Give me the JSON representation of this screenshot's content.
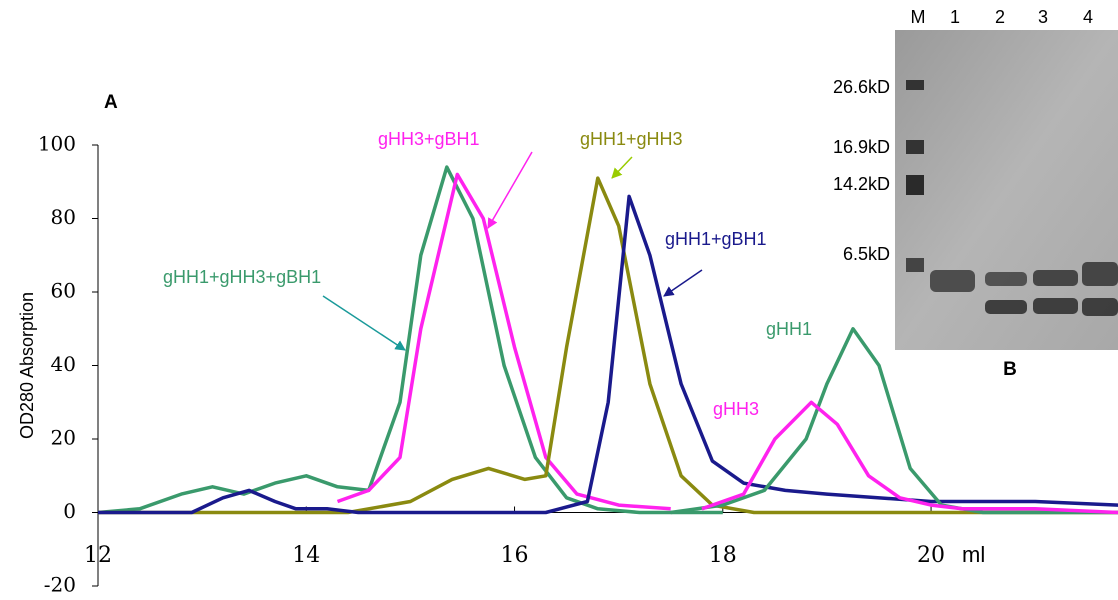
{
  "chart_data": {
    "type": "line",
    "title": "A",
    "y_label": "OD280 Absorption",
    "x_label": "ml",
    "xlim": [
      12,
      21.8
    ],
    "xticks": [
      12,
      14,
      16,
      18,
      20
    ],
    "ylim": [
      -20,
      100
    ],
    "yticks": [
      -20,
      0,
      20,
      40,
      60,
      80,
      100
    ],
    "series": [
      {
        "name": "gHH1+gHH3+gBH1",
        "color": "#3a9a6c",
        "x": [
          12,
          12.4,
          12.8,
          13.1,
          13.4,
          13.7,
          14.0,
          14.3,
          14.6,
          14.9,
          15.1,
          15.35,
          15.6,
          15.9,
          16.2,
          16.5,
          16.8,
          17.2,
          18
        ],
        "values": [
          0,
          1,
          5,
          7,
          5,
          8,
          10,
          7,
          6,
          30,
          70,
          94,
          80,
          40,
          15,
          4,
          1,
          0,
          0
        ]
      },
      {
        "name": "gHH3+gBH1",
        "color": "#ff22ee",
        "x": [
          14.3,
          14.6,
          14.9,
          15.1,
          15.45,
          15.7,
          16.0,
          16.3,
          16.6,
          17,
          17.5
        ],
        "values": [
          3,
          6,
          15,
          50,
          92,
          80,
          45,
          15,
          5,
          2,
          1
        ]
      },
      {
        "name": "gHH1+gHH3",
        "color": "#8a8a10",
        "x": [
          12,
          14.4,
          15,
          15.4,
          15.75,
          16.1,
          16.3,
          16.5,
          16.8,
          17.0,
          17.3,
          17.6,
          17.9,
          18.3,
          21.8
        ],
        "values": [
          0,
          0,
          3,
          9,
          12,
          9,
          10,
          45,
          91,
          78,
          35,
          10,
          2,
          0,
          0
        ]
      },
      {
        "name": "gHH1+gBH1",
        "color": "#1a1a8c",
        "x": [
          12,
          12.9,
          13.2,
          13.45,
          13.7,
          13.9,
          14.2,
          14.5,
          16.3,
          16.7,
          16.9,
          17.1,
          17.3,
          17.6,
          17.9,
          18.2,
          18.6,
          19,
          20,
          21,
          21.8
        ],
        "values": [
          0,
          0,
          4,
          6,
          3,
          1,
          1,
          0,
          0,
          3,
          30,
          86,
          70,
          35,
          14,
          8,
          6,
          5,
          3,
          3,
          2
        ]
      },
      {
        "name": "gHH1",
        "color": "#3a9a6c",
        "x": [
          17.5,
          18,
          18.4,
          18.8,
          19.0,
          19.25,
          19.5,
          19.8,
          20.1,
          20.5,
          21.8
        ],
        "values": [
          0,
          2,
          6,
          20,
          35,
          50,
          40,
          12,
          2,
          0,
          0
        ]
      },
      {
        "name": "gHH3",
        "color": "#ff22ee",
        "x": [
          17.8,
          18.2,
          18.5,
          18.85,
          19.1,
          19.4,
          19.7,
          20,
          20.3,
          21,
          21.8
        ],
        "values": [
          1,
          5,
          20,
          30,
          24,
          10,
          4,
          2,
          1,
          1,
          0
        ]
      }
    ]
  },
  "gel": {
    "title": "B",
    "lanes": [
      "M",
      "1",
      "2",
      "3",
      "4"
    ],
    "markers": [
      "26.6kD",
      "16.9kD",
      "14.2kD",
      "6.5kD"
    ]
  }
}
